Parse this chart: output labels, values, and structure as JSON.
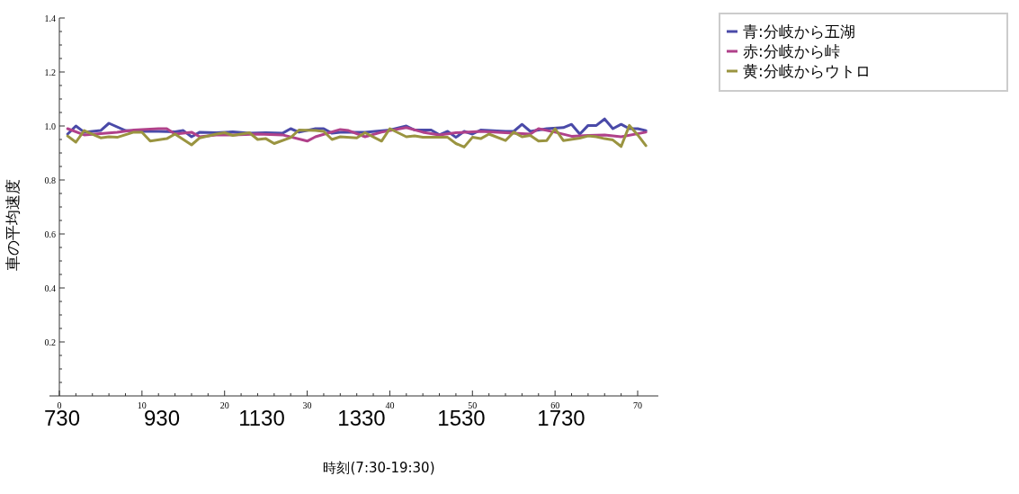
{
  "chart_data": {
    "type": "line",
    "xlabel": "時刻(7:30-19:30)",
    "ylabel": "車の平均速度",
    "annotations": [
      "730",
      "930",
      "1130",
      "1330",
      "1530",
      "1730"
    ],
    "xlim": [
      -1.2,
      72.5
    ],
    "ylim": [
      0,
      1.4
    ],
    "xticks": [
      0,
      10,
      20,
      30,
      40,
      50,
      60,
      70
    ],
    "yticks": [
      0.2,
      0.4,
      0.6,
      0.8,
      {
        "value": 1,
        "label": "1.0"
      },
      1.2,
      1.4
    ],
    "grid": false,
    "legend": "right",
    "marker": "none",
    "line_style": "solid",
    "series": [
      {
        "name": "青:分岐から五湖",
        "color": "#4a4aa8",
        "x": [
          1,
          2,
          3,
          5,
          6,
          8,
          10,
          12,
          14,
          15,
          16,
          17,
          19,
          21,
          23,
          25,
          27,
          28,
          29,
          31,
          32,
          33,
          34,
          37,
          40,
          42,
          43,
          45,
          46,
          47,
          48,
          49,
          50,
          51,
          54,
          55,
          56,
          57,
          59,
          61,
          62,
          63,
          64,
          65,
          66,
          67,
          68,
          69,
          70,
          71
        ],
        "values": [
          0.97,
          1.0,
          0.977,
          0.983,
          1.01,
          0.983,
          0.98,
          0.98,
          0.978,
          0.983,
          0.96,
          0.977,
          0.975,
          0.978,
          0.973,
          0.975,
          0.973,
          0.99,
          0.977,
          0.99,
          0.99,
          0.973,
          0.977,
          0.977,
          0.985,
          1.0,
          0.985,
          0.985,
          0.967,
          0.98,
          0.958,
          0.98,
          0.97,
          0.985,
          0.98,
          0.98,
          1.006,
          0.98,
          0.99,
          0.994,
          1.006,
          0.97,
          1.002,
          1.002,
          1.026,
          0.99,
          1.006,
          0.99,
          0.99,
          0.983
        ]
      },
      {
        "name": "赤:分岐から峠",
        "color": "#b0418a",
        "x": [
          1,
          3,
          5,
          7,
          9,
          12,
          13,
          14,
          16,
          17,
          19,
          21,
          24,
          27,
          30,
          31,
          34,
          35,
          37,
          39,
          42,
          44,
          46,
          48,
          51,
          54,
          57,
          58,
          60,
          62,
          64,
          66,
          68,
          71
        ],
        "values": [
          0.99,
          0.967,
          0.972,
          0.977,
          0.985,
          0.99,
          0.99,
          0.97,
          0.977,
          0.96,
          0.967,
          0.967,
          0.97,
          0.967,
          0.944,
          0.96,
          0.987,
          0.983,
          0.96,
          0.977,
          0.994,
          0.977,
          0.967,
          0.975,
          0.98,
          0.975,
          0.97,
          0.99,
          0.977,
          0.962,
          0.965,
          0.967,
          0.96,
          0.977
        ]
      },
      {
        "name": "黄:分岐からウトロ",
        "color": "#9a9440",
        "x": [
          1,
          2,
          3,
          5,
          6,
          7,
          9,
          10,
          11,
          13,
          14,
          16,
          17,
          19,
          20,
          21,
          23,
          24,
          25,
          26,
          28,
          29,
          31,
          32,
          33,
          34,
          36,
          37,
          39,
          40,
          42,
          43,
          44,
          47,
          48,
          49,
          50,
          51,
          52,
          54,
          55,
          56,
          57,
          58,
          59,
          60,
          61,
          63,
          64,
          65,
          66,
          67,
          68,
          69,
          70,
          71
        ],
        "values": [
          0.963,
          0.94,
          0.983,
          0.956,
          0.96,
          0.958,
          0.977,
          0.977,
          0.944,
          0.953,
          0.97,
          0.93,
          0.956,
          0.97,
          0.975,
          0.965,
          0.975,
          0.95,
          0.953,
          0.935,
          0.957,
          0.985,
          0.983,
          0.98,
          0.95,
          0.96,
          0.956,
          0.975,
          0.944,
          0.99,
          0.96,
          0.963,
          0.958,
          0.958,
          0.935,
          0.922,
          0.958,
          0.953,
          0.97,
          0.946,
          0.977,
          0.96,
          0.965,
          0.944,
          0.946,
          0.99,
          0.946,
          0.955,
          0.963,
          0.96,
          0.953,
          0.948,
          0.924,
          1.002,
          0.967,
          0.927
        ]
      }
    ]
  }
}
